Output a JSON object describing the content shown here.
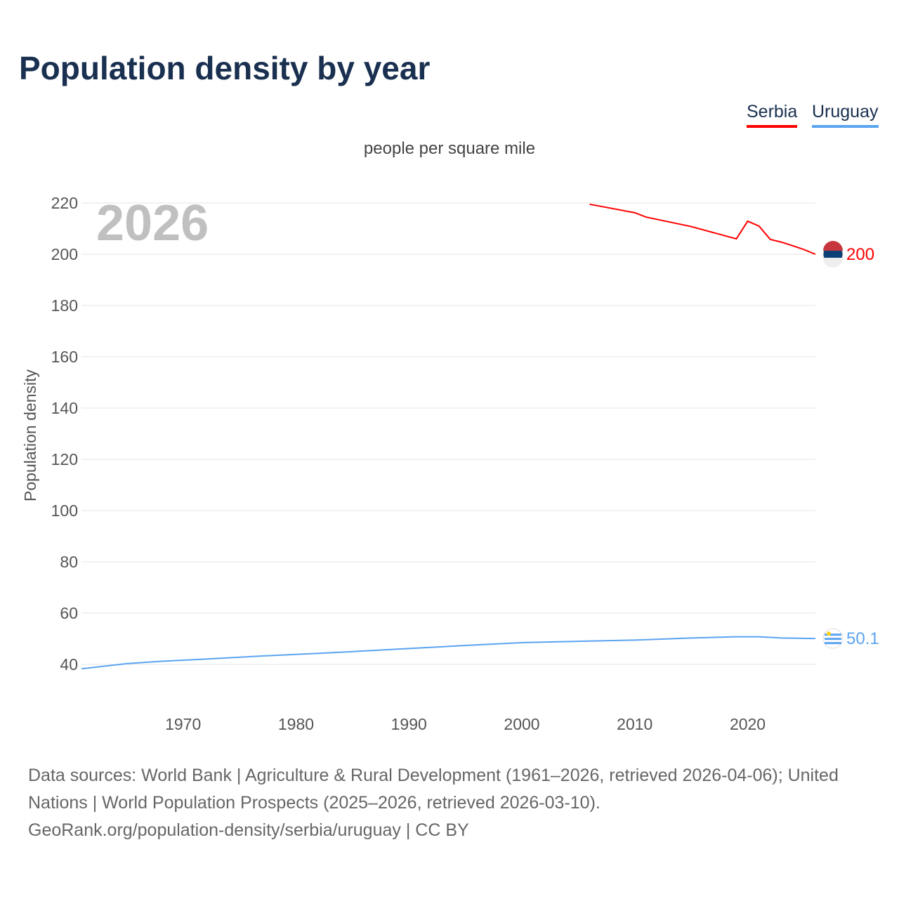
{
  "title": "Population density by year",
  "legend": [
    "Serbia",
    "Uruguay"
  ],
  "unit_label": "people per square mile",
  "year_watermark": "2026",
  "source_text": "Data sources: World Bank | Agriculture & Rural Development (1961–2026, retrieved 2026-04-06); United Nations | World Population Prospects (2025–2026, retrieved 2026-03-10).",
  "source_link": "GeoRank.org/population-density/serbia/uruguay | CC BY",
  "colors": {
    "Serbia": "#ff0000",
    "Uruguay": "#5ba4f0"
  },
  "chart_data": {
    "type": "line",
    "title": "Population density by year",
    "ylabel": "Population density",
    "xlabel": "",
    "ylim": [
      30,
      225
    ],
    "xlim": [
      1961,
      2026
    ],
    "yticks": [
      40,
      60,
      80,
      100,
      120,
      140,
      160,
      180,
      200,
      220
    ],
    "xticks": [
      1970,
      1980,
      1990,
      2000,
      2010,
      2020
    ],
    "grid": true,
    "legend_position": "top-right",
    "series": [
      {
        "name": "Serbia",
        "end_label": "200",
        "points": [
          [
            2006,
            219.5
          ],
          [
            2010,
            216.2
          ],
          [
            2011,
            214.5
          ],
          [
            2015,
            210.8
          ],
          [
            2019,
            206
          ],
          [
            2020,
            212.9
          ],
          [
            2021,
            211
          ],
          [
            2022,
            205.8
          ],
          [
            2023,
            204.7
          ],
          [
            2024,
            203.3
          ],
          [
            2025,
            201.8
          ],
          [
            2026,
            200
          ]
        ]
      },
      {
        "name": "Uruguay",
        "end_label": "50.1",
        "points": [
          [
            1961,
            38.3
          ],
          [
            1965,
            40.3
          ],
          [
            1968,
            41.2
          ],
          [
            1972,
            42.1
          ],
          [
            1977,
            43.3
          ],
          [
            1982,
            44.3
          ],
          [
            1985,
            45
          ],
          [
            1990,
            46.2
          ],
          [
            1995,
            47.4
          ],
          [
            2000,
            48.5
          ],
          [
            2005,
            49
          ],
          [
            2010,
            49.5
          ],
          [
            2015,
            50.3
          ],
          [
            2019,
            50.8
          ],
          [
            2021,
            50.8
          ],
          [
            2023,
            50.3
          ],
          [
            2026,
            50.1
          ]
        ]
      }
    ]
  }
}
